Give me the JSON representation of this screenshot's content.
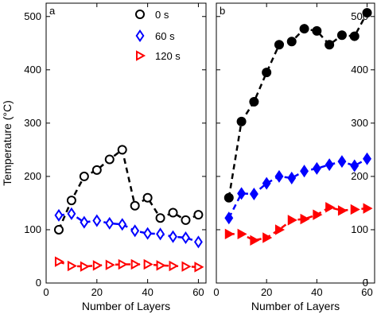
{
  "figure": {
    "ylabel": "Temperature (°C)",
    "legend": [
      "0 s",
      "60 s",
      "120 s"
    ]
  },
  "chart_data": [
    {
      "panel": "a",
      "type": "line",
      "xlabel": "Number of  Layers",
      "ylabel": "Temperature (°C)",
      "xlim": [
        0,
        63
      ],
      "ylim": [
        0,
        525
      ],
      "xticks": [
        0,
        20,
        40,
        60
      ],
      "yticks": [
        0,
        100,
        200,
        300,
        400,
        500
      ],
      "grid": false,
      "legend_position": "top-right",
      "markers": "open",
      "series": [
        {
          "name": "0 s",
          "color": "#000000",
          "marker": "circle",
          "x": [
            5,
            10,
            15,
            20,
            25,
            30,
            35,
            40,
            45,
            50,
            55,
            60
          ],
          "y": [
            100,
            155,
            200,
            212,
            232,
            250,
            145,
            160,
            122,
            132,
            118,
            128
          ]
        },
        {
          "name": "60 s",
          "color": "#0000ff",
          "marker": "diamond",
          "x": [
            5,
            10,
            15,
            20,
            25,
            30,
            35,
            40,
            45,
            50,
            55,
            60
          ],
          "y": [
            127,
            130,
            114,
            117,
            112,
            110,
            98,
            93,
            92,
            87,
            85,
            77
          ]
        },
        {
          "name": "120 s",
          "color": "#ff0000",
          "marker": "triangle-right",
          "x": [
            5,
            10,
            15,
            20,
            25,
            30,
            35,
            40,
            45,
            50,
            55,
            60
          ],
          "y": [
            40,
            32,
            31,
            33,
            34,
            35,
            35,
            35,
            33,
            32,
            31,
            30
          ]
        }
      ]
    },
    {
      "panel": "b",
      "type": "line",
      "xlabel": "Number of  Layers",
      "xlim": [
        0,
        63
      ],
      "ylim": [
        0,
        525
      ],
      "xticks": [
        0,
        20,
        40,
        60
      ],
      "yticks": [
        0,
        100,
        200,
        300,
        400,
        500
      ],
      "grid": false,
      "markers": "filled",
      "series": [
        {
          "name": "0 s",
          "color": "#000000",
          "marker": "circle",
          "x": [
            5,
            10,
            15,
            20,
            25,
            30,
            35,
            40,
            45,
            50,
            55,
            60
          ],
          "y": [
            160,
            303,
            340,
            395,
            447,
            453,
            477,
            473,
            447,
            465,
            463,
            507
          ]
        },
        {
          "name": "60 s",
          "color": "#0000ff",
          "marker": "diamond",
          "x": [
            5,
            10,
            15,
            20,
            25,
            30,
            35,
            40,
            45,
            50,
            55,
            60
          ],
          "y": [
            122,
            168,
            167,
            187,
            200,
            197,
            210,
            215,
            222,
            228,
            220,
            233
          ]
        },
        {
          "name": "120 s",
          "color": "#ff0000",
          "marker": "triangle-right",
          "x": [
            5,
            10,
            15,
            20,
            25,
            30,
            35,
            40,
            45,
            50,
            55,
            60
          ],
          "y": [
            92,
            92,
            80,
            85,
            100,
            118,
            120,
            128,
            142,
            136,
            138,
            140
          ]
        }
      ]
    }
  ]
}
